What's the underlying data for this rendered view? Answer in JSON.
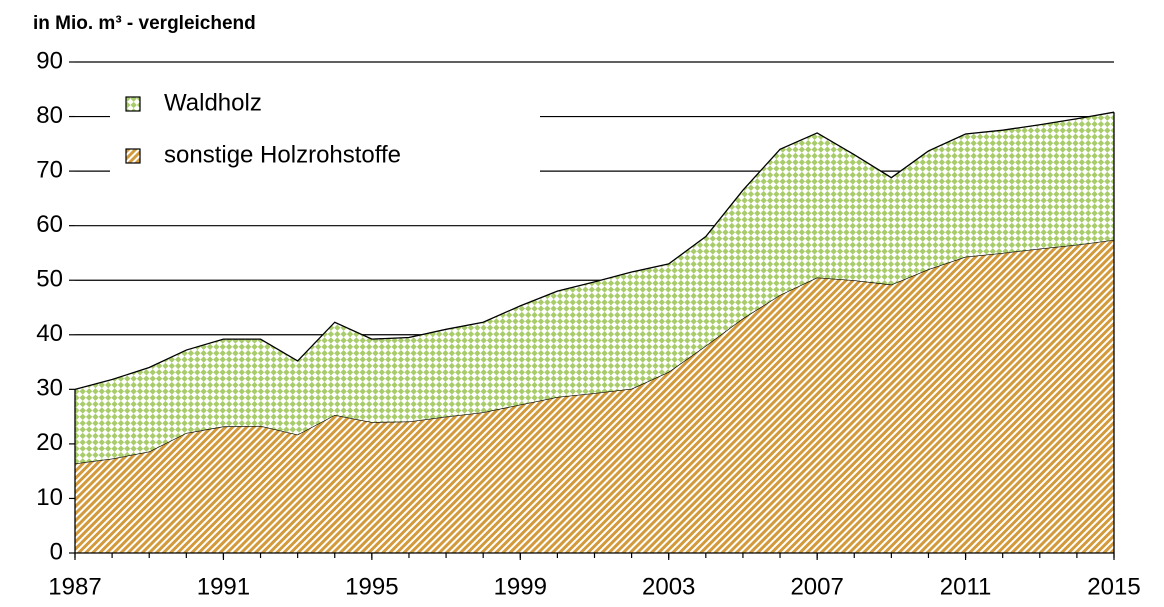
{
  "chart_data": {
    "type": "stacked_area",
    "title": "in Mio. m³ - vergleichend",
    "x": [
      1987,
      1988,
      1989,
      1990,
      1991,
      1992,
      1993,
      1994,
      1995,
      1996,
      1997,
      1998,
      1999,
      2000,
      2001,
      2002,
      2003,
      2004,
      2005,
      2006,
      2007,
      2008,
      2009,
      2010,
      2011,
      2012,
      2013,
      2014,
      2015
    ],
    "series": [
      {
        "name": "Waldholz",
        "color": "#a9cc6b",
        "values": [
          13.6,
          14.5,
          15.4,
          15.2,
          16.0,
          15.9,
          13.5,
          17.0,
          15.2,
          15.4,
          16.0,
          16.5,
          18.1,
          19.4,
          20.4,
          21.4,
          19.8,
          20.0,
          23.5,
          26.7,
          26.5,
          23.0,
          19.6,
          21.7,
          22.5,
          22.5,
          22.7,
          23.1,
          23.4
        ]
      },
      {
        "name": "sonstige Holzrohstoffe",
        "color": "#d39a3c",
        "values": [
          16.4,
          17.3,
          18.6,
          22.0,
          23.2,
          23.3,
          21.7,
          25.3,
          24.0,
          24.1,
          25.0,
          25.8,
          27.2,
          28.6,
          29.3,
          30.1,
          33.2,
          38.0,
          43.0,
          47.3,
          50.5,
          50.0,
          49.2,
          52.0,
          54.3,
          55.0,
          55.8,
          56.5,
          57.4
        ]
      }
    ],
    "xlim": [
      1987,
      2015
    ],
    "xticks": [
      1987,
      1991,
      1995,
      1999,
      2003,
      2007,
      2011,
      2015
    ],
    "ylim": [
      0,
      90
    ],
    "yticks": [
      0,
      10,
      20,
      30,
      40,
      50,
      60,
      70,
      80,
      90
    ],
    "grid": true,
    "legend": "upper left"
  }
}
